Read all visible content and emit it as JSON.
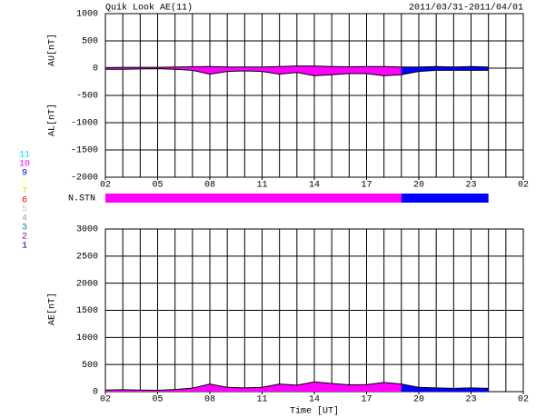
{
  "title": "Quik Look AE(11)",
  "date_range": "2011/03/31-2011/04/01",
  "station_legend": {
    "labels": [
      "11",
      "10",
      "9",
      "8",
      "7",
      "6",
      "5",
      "4",
      "3",
      "2",
      "1"
    ],
    "colors": [
      "#00e0e0",
      "#ff00ff",
      "#0000ff",
      "#ffff99",
      "#e0e000",
      "#ff0000",
      "#c8c8c8",
      "#a0a0a0",
      "#008b8b",
      "#a000a0",
      "#0000a0"
    ]
  },
  "chart_data": [
    {
      "type": "area",
      "ylabel": "AU[nT]",
      "ylabel2": "AL[nT]",
      "x": [
        2,
        3,
        4,
        5,
        6,
        7,
        8,
        9,
        10,
        11,
        12,
        13,
        14,
        15,
        16,
        17,
        18,
        19,
        20,
        21,
        22,
        23,
        24
      ],
      "series": [
        {
          "name": "AU",
          "values": [
            10,
            15,
            15,
            15,
            20,
            25,
            30,
            20,
            20,
            20,
            30,
            40,
            40,
            30,
            25,
            30,
            30,
            20,
            20,
            30,
            20,
            30,
            20
          ]
        },
        {
          "name": "AL",
          "values": [
            -20,
            -20,
            -15,
            -10,
            -20,
            -40,
            -110,
            -60,
            -50,
            -60,
            -110,
            -80,
            -140,
            -120,
            -100,
            -100,
            -140,
            -120,
            -60,
            -40,
            -40,
            -40,
            -40
          ]
        }
      ],
      "xlim": [
        2,
        26
      ],
      "xticks": [
        {
          "value": 2,
          "label": "02"
        },
        {
          "value": 5,
          "label": "05"
        },
        {
          "value": 8,
          "label": "08"
        },
        11,
        14,
        17,
        20,
        23,
        {
          "value": 26,
          "label": "02"
        }
      ],
      "ylim": [
        -2000,
        1000
      ],
      "yticks": [
        -2000,
        -1500,
        -1000,
        -500,
        0,
        500,
        1000
      ],
      "grid": true
    },
    {
      "type": "strip",
      "label": "N.STN",
      "xlim": [
        2,
        26
      ],
      "segments": [
        {
          "start": 2,
          "end": 19,
          "value": 10
        },
        {
          "start": 19,
          "end": 24,
          "value": 9
        }
      ]
    },
    {
      "type": "area",
      "ylabel": "AE[nT]",
      "xlabel": "Time [UT]",
      "x": [
        2,
        3,
        4,
        5,
        6,
        7,
        8,
        9,
        10,
        11,
        12,
        13,
        14,
        15,
        16,
        17,
        18,
        19,
        20,
        21,
        22,
        23,
        24
      ],
      "series": [
        {
          "name": "AE",
          "values": [
            30,
            35,
            30,
            25,
            40,
            65,
            140,
            80,
            70,
            80,
            140,
            120,
            180,
            150,
            125,
            130,
            170,
            140,
            80,
            70,
            60,
            70,
            60
          ]
        }
      ],
      "xlim": [
        2,
        26
      ],
      "xticks": [
        {
          "value": 2,
          "label": "02"
        },
        {
          "value": 5,
          "label": "05"
        },
        {
          "value": 8,
          "label": "08"
        },
        11,
        14,
        17,
        20,
        23,
        {
          "value": 26,
          "label": "02"
        }
      ],
      "ylim": [
        0,
        3000
      ],
      "yticks": [
        0,
        500,
        1000,
        1500,
        2000,
        2500,
        3000
      ],
      "grid": true
    }
  ]
}
